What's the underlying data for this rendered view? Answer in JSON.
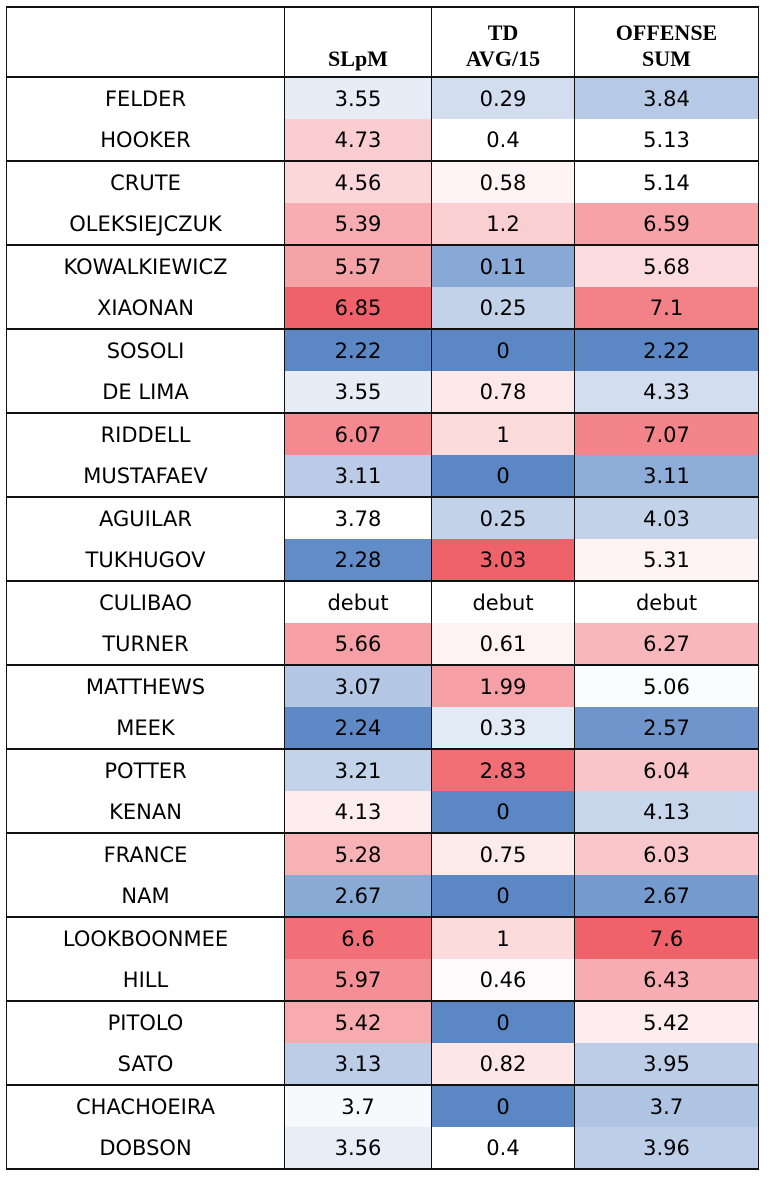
{
  "chart_data": {
    "type": "table",
    "title": "",
    "columns": [
      "",
      "SLpM",
      "TD\nAVG/15",
      "OFFENSE\nSUM"
    ],
    "header": {
      "name": "",
      "slpm": "SLpM",
      "td_line1": "TD",
      "td_line2": "AVG/15",
      "off_line1": "OFFENSE",
      "off_line2": "SUM"
    },
    "color_scale": {
      "low": "#5b87c5",
      "mid": "#ffffff",
      "high": "#f0626a"
    },
    "ranges": {
      "slpm": [
        2.22,
        6.85
      ],
      "td": [
        0,
        3.03
      ],
      "off": [
        2.22,
        7.6
      ]
    },
    "rows": [
      {
        "name": "FELDER",
        "slpm": "3.55",
        "td": "0.29",
        "off": "3.84"
      },
      {
        "name": "HOOKER",
        "slpm": "4.73",
        "td": "0.4",
        "off": "5.13"
      },
      {
        "name": "CRUTE",
        "slpm": "4.56",
        "td": "0.58",
        "off": "5.14"
      },
      {
        "name": "OLEKSIEJCZUK",
        "slpm": "5.39",
        "td": "1.2",
        "off": "6.59"
      },
      {
        "name": "KOWALKIEWICZ",
        "slpm": "5.57",
        "td": "0.11",
        "off": "5.68"
      },
      {
        "name": "XIAONAN",
        "slpm": "6.85",
        "td": "0.25",
        "off": "7.1"
      },
      {
        "name": "SOSOLI",
        "slpm": "2.22",
        "td": "0",
        "off": "2.22"
      },
      {
        "name": "DE LIMA",
        "slpm": "3.55",
        "td": "0.78",
        "off": "4.33"
      },
      {
        "name": "RIDDELL",
        "slpm": "6.07",
        "td": "1",
        "off": "7.07"
      },
      {
        "name": "MUSTAFAEV",
        "slpm": "3.11",
        "td": "0",
        "off": "3.11"
      },
      {
        "name": "AGUILAR",
        "slpm": "3.78",
        "td": "0.25",
        "off": "4.03"
      },
      {
        "name": "TUKHUGOV",
        "slpm": "2.28",
        "td": "3.03",
        "off": "5.31"
      },
      {
        "name": "CULIBAO",
        "slpm": "debut",
        "td": "debut",
        "off": "debut"
      },
      {
        "name": "TURNER",
        "slpm": "5.66",
        "td": "0.61",
        "off": "6.27"
      },
      {
        "name": "MATTHEWS",
        "slpm": "3.07",
        "td": "1.99",
        "off": "5.06"
      },
      {
        "name": "MEEK",
        "slpm": "2.24",
        "td": "0.33",
        "off": "2.57"
      },
      {
        "name": "POTTER",
        "slpm": "3.21",
        "td": "2.83",
        "off": "6.04"
      },
      {
        "name": "KENAN",
        "slpm": "4.13",
        "td": "0",
        "off": "4.13"
      },
      {
        "name": "FRANCE",
        "slpm": "5.28",
        "td": "0.75",
        "off": "6.03"
      },
      {
        "name": "NAM",
        "slpm": "2.67",
        "td": "0",
        "off": "2.67"
      },
      {
        "name": "LOOKBOONMEE",
        "slpm": "6.6",
        "td": "1",
        "off": "7.6"
      },
      {
        "name": "HILL",
        "slpm": "5.97",
        "td": "0.46",
        "off": "6.43"
      },
      {
        "name": "PITOLO",
        "slpm": "5.42",
        "td": "0",
        "off": "5.42"
      },
      {
        "name": "SATO",
        "slpm": "3.13",
        "td": "0.82",
        "off": "3.95"
      },
      {
        "name": "CHACHOEIRA",
        "slpm": "3.7",
        "td": "0",
        "off": "3.7"
      },
      {
        "name": "DOBSON",
        "slpm": "3.56",
        "td": "0.4",
        "off": "3.96"
      }
    ]
  }
}
